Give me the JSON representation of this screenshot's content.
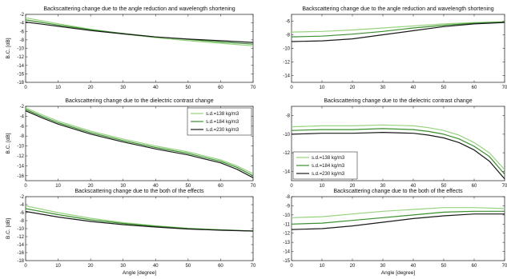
{
  "colors": {
    "light_green": "#97d37e",
    "dark_green": "#3a8f2e",
    "black": "#1a1a1a"
  },
  "chart_data": [
    {
      "type": "line",
      "title": "Backscattering change due to the angle reduction and wavelength shortening",
      "xlabel": "",
      "ylabel": "B.C. [dB]",
      "xlim": [
        0,
        70
      ],
      "ylim": [
        -18,
        -2
      ],
      "xticks": [
        0,
        10,
        20,
        30,
        40,
        50,
        60,
        70
      ],
      "yticks": [
        -2,
        -4,
        -6,
        -8,
        -10,
        -12,
        -14,
        -16,
        -18
      ],
      "grid": false,
      "legend": null,
      "series": [
        {
          "color": "#97d37e",
          "x": [
            0,
            5,
            10,
            20,
            30,
            40,
            50,
            60,
            70
          ],
          "y": [
            -2.8,
            -3.5,
            -4.2,
            -5.5,
            -6.6,
            -7.5,
            -8.2,
            -8.8,
            -9.4
          ]
        },
        {
          "color": "#3a8f2e",
          "x": [
            0,
            5,
            10,
            20,
            30,
            40,
            50,
            60,
            70
          ],
          "y": [
            -3.3,
            -3.9,
            -4.5,
            -5.6,
            -6.5,
            -7.3,
            -7.9,
            -8.5,
            -9.0
          ]
        },
        {
          "color": "#1a1a1a",
          "x": [
            0,
            5,
            10,
            20,
            30,
            40,
            50,
            60,
            70
          ],
          "y": [
            -3.8,
            -4.3,
            -4.8,
            -5.8,
            -6.6,
            -7.3,
            -7.8,
            -8.2,
            -8.6
          ]
        }
      ]
    },
    {
      "type": "line",
      "title": "Backscattering change due to the angle reduction and wavelength shortening",
      "xlabel": "",
      "ylabel": "",
      "xlim": [
        0,
        70
      ],
      "ylim": [
        -15,
        -5
      ],
      "xticks": [
        0,
        10,
        20,
        30,
        40,
        50,
        60,
        70
      ],
      "yticks": [
        -6,
        -8,
        -10,
        -12,
        -14
      ],
      "grid": false,
      "legend": null,
      "series": [
        {
          "color": "#97d37e",
          "x": [
            0,
            10,
            20,
            30,
            40,
            50,
            60,
            70
          ],
          "y": [
            -7.6,
            -7.5,
            -7.3,
            -7.0,
            -6.7,
            -6.4,
            -6.2,
            -6.1
          ]
        },
        {
          "color": "#3a8f2e",
          "x": [
            0,
            10,
            20,
            30,
            40,
            50,
            60,
            70
          ],
          "y": [
            -8.3,
            -8.2,
            -7.9,
            -7.5,
            -7.0,
            -6.6,
            -6.3,
            -6.1
          ]
        },
        {
          "color": "#1a1a1a",
          "x": [
            0,
            10,
            20,
            30,
            40,
            50,
            60,
            70
          ],
          "y": [
            -9.0,
            -8.9,
            -8.6,
            -8.0,
            -7.4,
            -6.8,
            -6.4,
            -6.2
          ]
        }
      ]
    },
    {
      "type": "line",
      "title": "Backscattering change due to the dielectric contrast change",
      "xlabel": "",
      "ylabel": "B.C. [dB]",
      "xlim": [
        0,
        70
      ],
      "ylim": [
        -17,
        -2
      ],
      "xticks": [
        0,
        10,
        20,
        30,
        40,
        50,
        60,
        70
      ],
      "yticks": [
        -2,
        -4,
        -6,
        -8,
        -10,
        -12,
        -14,
        -16
      ],
      "grid": false,
      "legend": {
        "position": "top-right",
        "entries": [
          {
            "label": "s.d.=138 kg/m3",
            "color": "#97d37e"
          },
          {
            "label": "s.d.=184 kg/m3",
            "color": "#3a8f2e"
          },
          {
            "label": "s.d.=230 kg/m3",
            "color": "#1a1a1a"
          }
        ]
      },
      "series": [
        {
          "color": "#97d37e",
          "x": [
            0,
            5,
            10,
            20,
            30,
            40,
            50,
            60,
            65,
            70
          ],
          "y": [
            -2.3,
            -3.7,
            -5.0,
            -7.0,
            -8.6,
            -10.0,
            -11.2,
            -12.8,
            -14.0,
            -15.6
          ]
        },
        {
          "color": "#3a8f2e",
          "x": [
            0,
            5,
            10,
            20,
            30,
            40,
            50,
            60,
            65,
            70
          ],
          "y": [
            -2.6,
            -4.0,
            -5.3,
            -7.3,
            -8.9,
            -10.3,
            -11.5,
            -13.1,
            -14.3,
            -16.0
          ]
        },
        {
          "color": "#1a1a1a",
          "x": [
            0,
            5,
            10,
            20,
            30,
            40,
            50,
            60,
            65,
            70
          ],
          "y": [
            -2.9,
            -4.3,
            -5.6,
            -7.6,
            -9.2,
            -10.6,
            -11.8,
            -13.4,
            -14.7,
            -16.4
          ]
        }
      ]
    },
    {
      "type": "line",
      "title": "Backscattering change due to the dielectric contrast change",
      "xlabel": "",
      "ylabel": "",
      "xlim": [
        0,
        70
      ],
      "ylim": [
        -15,
        -7
      ],
      "xticks": [
        0,
        10,
        20,
        30,
        40,
        50,
        60,
        70
      ],
      "yticks": [
        -8,
        -10,
        -12,
        -14
      ],
      "grid": false,
      "legend": {
        "position": "bottom-left",
        "entries": [
          {
            "label": "s.d.=138 kg/m3",
            "color": "#97d37e"
          },
          {
            "label": "s.d.=184 kg/m3",
            "color": "#3a8f2e"
          },
          {
            "label": "s.d.=230 kg/m3",
            "color": "#1a1a1a"
          }
        ]
      },
      "series": [
        {
          "color": "#97d37e",
          "x": [
            0,
            10,
            20,
            30,
            40,
            45,
            50,
            55,
            60,
            65,
            70
          ],
          "y": [
            -9.2,
            -9.1,
            -9.1,
            -9.0,
            -9.1,
            -9.3,
            -9.6,
            -10.1,
            -10.9,
            -12.0,
            -13.8
          ]
        },
        {
          "color": "#3a8f2e",
          "x": [
            0,
            10,
            20,
            30,
            40,
            45,
            50,
            55,
            60,
            65,
            70
          ],
          "y": [
            -9.6,
            -9.5,
            -9.5,
            -9.4,
            -9.5,
            -9.7,
            -10.0,
            -10.5,
            -11.3,
            -12.4,
            -14.3
          ]
        },
        {
          "color": "#1a1a1a",
          "x": [
            0,
            10,
            20,
            30,
            40,
            45,
            50,
            55,
            60,
            65,
            70
          ],
          "y": [
            -10.0,
            -9.9,
            -9.9,
            -9.8,
            -9.9,
            -10.1,
            -10.4,
            -10.9,
            -11.7,
            -12.9,
            -14.8
          ]
        }
      ]
    },
    {
      "type": "line",
      "title": "Backscattering change due to the both of the effects",
      "xlabel": "Angle [degree]",
      "ylabel": "B.C. [dB]",
      "xlim": [
        0,
        70
      ],
      "ylim": [
        -18,
        -2
      ],
      "xticks": [
        0,
        10,
        20,
        30,
        40,
        50,
        60,
        70
      ],
      "yticks": [
        -2,
        -4,
        -6,
        -8,
        -10,
        -12,
        -14,
        -16,
        -18
      ],
      "grid": false,
      "legend": null,
      "series": [
        {
          "color": "#97d37e",
          "x": [
            0,
            10,
            20,
            30,
            40,
            50,
            60,
            70
          ],
          "y": [
            -4.3,
            -6.0,
            -7.4,
            -8.5,
            -9.3,
            -9.9,
            -10.3,
            -10.6
          ]
        },
        {
          "color": "#3a8f2e",
          "x": [
            0,
            10,
            20,
            30,
            40,
            50,
            60,
            70
          ],
          "y": [
            -5.0,
            -6.5,
            -7.8,
            -8.7,
            -9.4,
            -10.0,
            -10.3,
            -10.6
          ]
        },
        {
          "color": "#1a1a1a",
          "x": [
            0,
            10,
            20,
            30,
            40,
            50,
            60,
            70
          ],
          "y": [
            -5.7,
            -7.1,
            -8.2,
            -9.0,
            -9.6,
            -10.1,
            -10.4,
            -10.6
          ]
        }
      ]
    },
    {
      "type": "line",
      "title": "Backscattering change due to the both of the effects",
      "xlabel": "Angle [degree]",
      "ylabel": "",
      "xlim": [
        0,
        70
      ],
      "ylim": [
        -15,
        -8
      ],
      "xticks": [
        0,
        10,
        20,
        30,
        40,
        50,
        60,
        70
      ],
      "yticks": [
        -8,
        -9,
        -10,
        -11,
        -12,
        -13,
        -14,
        -15
      ],
      "grid": false,
      "legend": null,
      "series": [
        {
          "color": "#97d37e",
          "x": [
            0,
            10,
            20,
            30,
            40,
            50,
            60,
            70
          ],
          "y": [
            -10.3,
            -10.2,
            -9.9,
            -9.6,
            -9.4,
            -9.2,
            -9.2,
            -9.3
          ]
        },
        {
          "color": "#3a8f2e",
          "x": [
            0,
            10,
            20,
            30,
            40,
            50,
            60,
            70
          ],
          "y": [
            -11.0,
            -10.9,
            -10.6,
            -10.3,
            -10.0,
            -9.7,
            -9.6,
            -9.6
          ]
        },
        {
          "color": "#1a1a1a",
          "x": [
            0,
            10,
            20,
            30,
            40,
            50,
            60,
            70
          ],
          "y": [
            -11.6,
            -11.5,
            -11.2,
            -10.8,
            -10.4,
            -10.1,
            -9.9,
            -9.9
          ]
        }
      ]
    }
  ]
}
